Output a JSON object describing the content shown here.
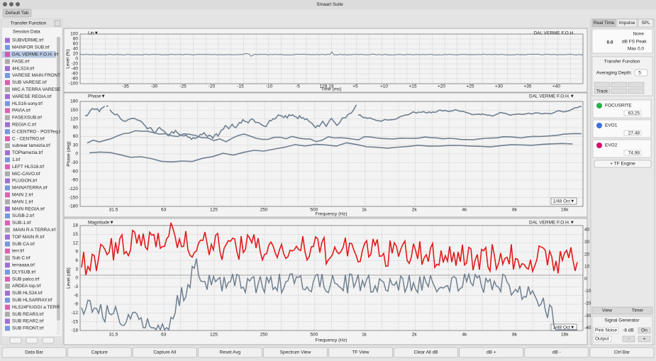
{
  "window": {
    "title": "Smaart Suite",
    "tab": "Default Tab"
  },
  "sidebar": {
    "title": "Transfer Function",
    "section": "Session Data",
    "items": [
      "SUBVERME.trf",
      "MAINFOR SUB.trf",
      "DAL VERME F.O.H. trf",
      "FASE.trf",
      "4HLS24.trf",
      "VARESE MAIN FRONT",
      "SUB VARESE.trf",
      "MIC A TERRA VARESE",
      "VARESE REGIA.trf",
      "HLS16-sony.trf",
      "PAVIA.trf",
      "FASEXSUB.trf",
      "REGIA C.trf",
      "C-CENTRO - POSTeq.t",
      "C - CENTRO.trf",
      "subrear lamezia.trf",
      "TOPlamezia.trf",
      "1.trf",
      "LEFT HLS16.trf",
      "MIC-CAVO.trf",
      "PLUGON.trf",
      "MAINATERRA.trf",
      "MAIN 2.trf",
      "MAIN 1.trf",
      "MAIN REGIA.trf",
      "SUSB-2.trf",
      "SUB-1.trf",
      ".MAIN R A TERRA.trf",
      "TOP MAIN R.trf",
      "SUB CA.trf",
      "terr.trf",
      "Sub C.trf",
      "terraaaa.trf",
      "DLYSUB.trf",
      "SUB palco.trf",
      "ARDEA top.trf",
      "SUB HLS24.trf",
      "SUB HLSARRAY.trf",
      "HLS24FIUGGI a TERR",
      "SUB REAR3.trf",
      "SUB REAR2.trf",
      "SUB FRONT.trf"
    ]
  },
  "impulse": {
    "mode": "Lin▼",
    "trace": "DAL VERME F.O.H.",
    "y_label": "Level (%)",
    "x_label": "Time (ms)",
    "yticks": [
      "100",
      "80",
      "60",
      "40",
      "20",
      "0",
      "-20",
      "-40",
      "-60",
      "-80",
      "-100"
    ],
    "xticks": [
      "-35",
      "-30",
      "-25",
      "-20",
      "-15",
      "-10",
      "-5",
      "128.19",
      "+5",
      "+10",
      "+15",
      "+20",
      "+25",
      "+30",
      "+35",
      "+40"
    ]
  },
  "phase": {
    "title": "Phase▼",
    "trace": "DAL VERME F.O.H.▼",
    "y_label": "Phase (deg)",
    "x_label": "Frequency (Hz)",
    "smoothing": "1/48 Oct▼",
    "yticks": [
      "180",
      "150",
      "120",
      "90",
      "60",
      "30",
      "0",
      "-30",
      "-60",
      "-90",
      "-120",
      "-150",
      "-180"
    ],
    "xticks": [
      "31.5",
      "63",
      "125",
      "250",
      "500",
      "1k",
      "2k",
      "4k",
      "8k",
      "16k"
    ]
  },
  "magnitude": {
    "title": "Magnitude▼",
    "trace": "DAL VERME F.O.H.▼",
    "y_label": "Level (dB)",
    "x_label": "Frequency (Hz)",
    "smoothing": "1/48 Oct▼",
    "yticks": [
      "18",
      "15",
      "12",
      "9",
      "6",
      "3",
      "0",
      "-3",
      "-6",
      "-9",
      "-12",
      "-15",
      "-18"
    ],
    "y2ticks": [
      "40",
      "30",
      "20",
      "10",
      "0",
      "-10",
      "-20",
      "-30",
      "-40"
    ],
    "xticks": [
      "31.5",
      "63",
      "125",
      "250",
      "500",
      "1k",
      "2k",
      "4k",
      "8k",
      "16k"
    ]
  },
  "control": {
    "tabs": [
      "Real Time",
      "Impulse",
      "SPL"
    ],
    "meter": {
      "source": "None",
      "value": "0.0",
      "unit": "dB FS Peak",
      "max": "Max 0.0"
    },
    "tf_title": "Transfer Function",
    "averaging_label": "Averaging Depth:",
    "averaging_value": "5",
    "track": "Track",
    "measurements": [
      {
        "name": "FOCUSRITE",
        "delay": "63.25"
      },
      {
        "name": "EVO1",
        "delay": "27.48"
      },
      {
        "name": "EVO2",
        "delay": "74.98"
      }
    ],
    "add_engine": "+ TF Engine",
    "view_tabs": [
      "View",
      "Timer"
    ],
    "generator": {
      "title": "Signal Generator",
      "signal": "Pink Noise",
      "level": "-8 dB",
      "on": "On",
      "output": "Output",
      "minus": "-",
      "plus": "+"
    }
  },
  "buttons": [
    "Data Bar",
    "Capture",
    "Capture All",
    "Reset Avg",
    "Spectrum View",
    "TF View",
    "Clear All dB",
    "dB +",
    "dB -",
    "Ctrl Bar"
  ]
}
